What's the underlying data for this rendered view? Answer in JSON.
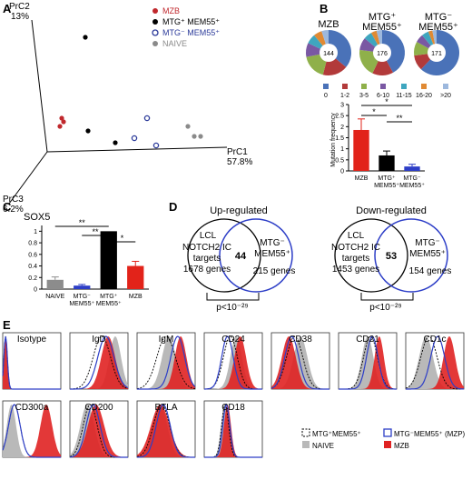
{
  "panels": {
    "A": "A",
    "B": "B",
    "C": "C",
    "D": "D",
    "E": "E"
  },
  "pca": {
    "axes": {
      "pc1": {
        "name": "PrC1",
        "pct": "57.8%"
      },
      "pc2": {
        "name": "PrC2",
        "pct": "13%"
      },
      "pc3": {
        "name": "PrC3",
        "pct": "6.2%"
      }
    },
    "legend": [
      {
        "label": "MZB",
        "color": "#c0282d",
        "style": "filled"
      },
      {
        "label": "MTG⁺ MEM55⁺",
        "color": "#000000",
        "style": "filled"
      },
      {
        "label": "MTG⁻ MEM55⁺",
        "color": "#2b3a9a",
        "style": "open"
      },
      {
        "label": "NAIVE",
        "color": "#8a8a8a",
        "style": "filled"
      }
    ]
  },
  "pies": {
    "titles": [
      {
        "l1": "MZB",
        "l2": ""
      },
      {
        "l1": "MTG⁺",
        "l2": "MEM55⁺"
      },
      {
        "l1": "MTG⁻",
        "l2": "MEM55⁺"
      }
    ],
    "n": [
      "144",
      "176",
      "171"
    ],
    "legend": [
      {
        "label": "0",
        "color": "#4a72b8"
      },
      {
        "label": "1-2",
        "color": "#b23a3a"
      },
      {
        "label": "3-5",
        "color": "#8fb04a"
      },
      {
        "label": "6-10",
        "color": "#7a58a3"
      },
      {
        "label": "11-15",
        "color": "#3fa6bf"
      },
      {
        "label": "16-20",
        "color": "#e08a34"
      },
      {
        "label": ">20",
        "color": "#9db8dd"
      }
    ]
  },
  "mutation_chart": {
    "ylabel": "Mutation frequency",
    "ticks": [
      "0",
      "0.5",
      "1",
      "1.5",
      "2",
      "2.5",
      "3"
    ],
    "ylim": [
      0,
      3
    ],
    "bars": [
      {
        "l1": "MZB",
        "l2": "",
        "value": 1.85,
        "err": 0.5,
        "color": "#e2231a"
      },
      {
        "l1": "MTG⁺",
        "l2": "MEM55⁺",
        "value": 0.7,
        "err": 0.2,
        "color": "#000000"
      },
      {
        "l1": "MTG⁻",
        "l2": "MEM55⁺",
        "value": 0.2,
        "err": 0.1,
        "color": "#2d3ec7"
      }
    ],
    "sig": [
      "*",
      "*",
      "**"
    ]
  },
  "sox5_chart": {
    "title": "SOX5",
    "ticks": [
      "0",
      "0.2",
      "0.4",
      "0.6",
      "0.8",
      "1"
    ],
    "ylim": [
      0,
      1.1
    ],
    "bars": [
      {
        "l1": "NAIVE",
        "l2": "",
        "value": 0.16,
        "err": 0.05,
        "color": "#8c8c8c"
      },
      {
        "l1": "MTG⁻",
        "l2": "MEM55⁺",
        "value": 0.06,
        "err": 0.02,
        "color": "#2d3ec7"
      },
      {
        "l1": "MTG⁺",
        "l2": "MEM55⁺",
        "value": 1.0,
        "err": 0.0,
        "color": "#000000"
      },
      {
        "l1": "MZB",
        "l2": "",
        "value": 0.4,
        "err": 0.08,
        "color": "#e2231a"
      }
    ],
    "sig": [
      "**",
      "**",
      "*"
    ]
  },
  "venn": [
    {
      "title": "Up-regulated",
      "left": {
        "name": "LCL",
        "l2": "NOTCH2 IC",
        "l3": "targets",
        "genes": "1678 genes"
      },
      "overlap": "44",
      "right": {
        "l1": "MTG⁻",
        "l2": "MEM55⁺",
        "genes": "215 genes"
      },
      "p": "p<10⁻²⁹"
    },
    {
      "title": "Down-regulated",
      "left": {
        "name": "LCL",
        "l2": "NOTCH2 IC",
        "l3": "targets",
        "genes": "1453 genes"
      },
      "overlap": "53",
      "right": {
        "l1": "MTG⁻",
        "l2": "MEM55⁺",
        "genes": "154 genes"
      },
      "p": "p<10⁻²⁹"
    }
  ],
  "flow": {
    "markers": [
      "Isotype",
      "IgD",
      "IgM",
      "CD24",
      "CD38",
      "CD21",
      "CD1c",
      "CD300a",
      "CD200",
      "BTLA",
      "CD18"
    ],
    "legend": [
      {
        "label": "MTG⁺MEM55⁺",
        "style": "dashed"
      },
      {
        "label": "MTG⁻MEM55⁺ (MZP)",
        "style": "blue"
      },
      {
        "label": "NAIVE",
        "style": "gray"
      },
      {
        "label": "MZB",
        "style": "red"
      }
    ]
  }
}
